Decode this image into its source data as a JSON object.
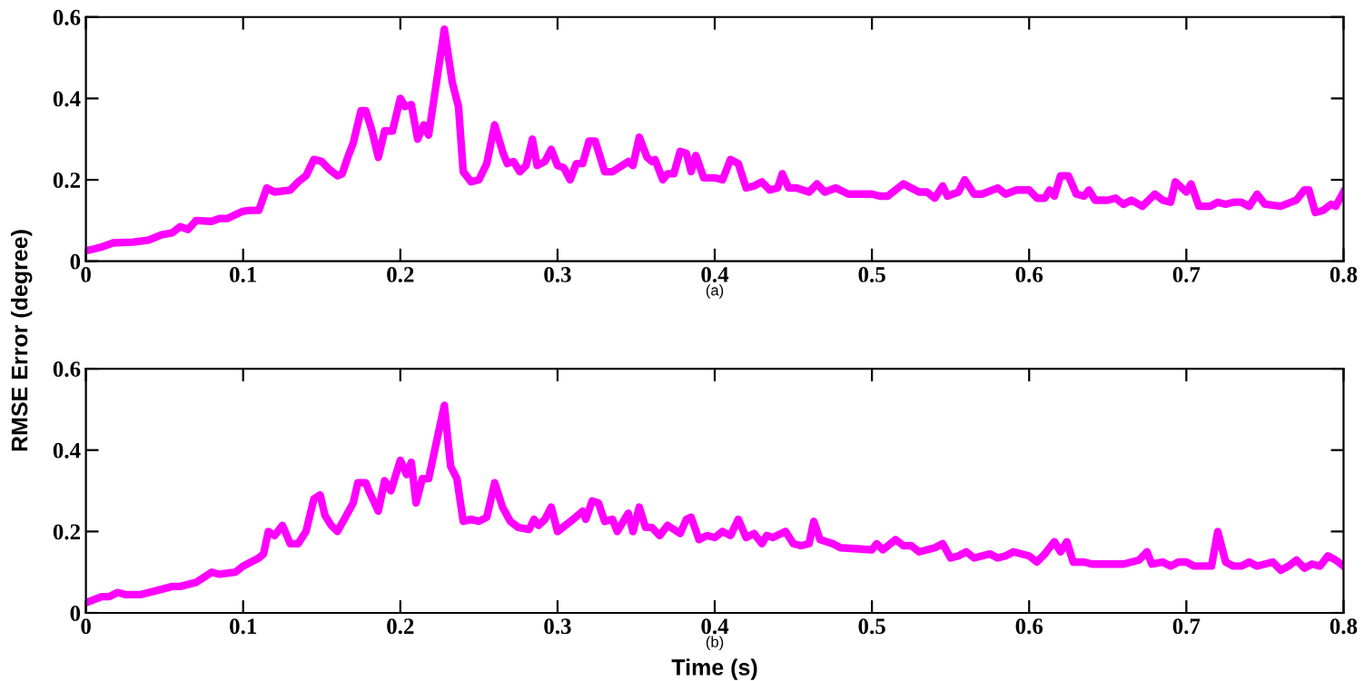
{
  "chart_data": [
    {
      "type": "line",
      "ylabel": "RMSE Error (degree)",
      "annotations": [
        "(a)"
      ],
      "xlim": [
        0,
        0.8
      ],
      "ylim": [
        0,
        0.6
      ],
      "xticks": [
        0,
        0.1,
        0.2,
        0.3,
        0.4,
        0.5,
        0.6,
        0.7,
        0.8
      ],
      "yticks": [
        0,
        0.2,
        0.4,
        0.6
      ],
      "grid": false,
      "legend": false,
      "marker": "none",
      "line_style": "solid",
      "series": [
        {
          "color": "#ff00ff",
          "x": [
            0,
            0.005,
            0.01,
            0.017,
            0.03,
            0.04,
            0.048,
            0.055,
            0.06,
            0.065,
            0.07,
            0.08,
            0.085,
            0.09,
            0.1,
            0.105,
            0.11,
            0.115,
            0.12,
            0.13,
            0.135,
            0.14,
            0.145,
            0.15,
            0.155,
            0.16,
            0.163,
            0.167,
            0.17,
            0.175,
            0.178,
            0.182,
            0.186,
            0.19,
            0.195,
            0.2,
            0.203,
            0.207,
            0.211,
            0.215,
            0.218,
            0.228,
            0.233,
            0.237,
            0.24,
            0.245,
            0.25,
            0.255,
            0.26,
            0.265,
            0.268,
            0.272,
            0.276,
            0.28,
            0.284,
            0.287,
            0.292,
            0.296,
            0.3,
            0.304,
            0.308,
            0.312,
            0.316,
            0.32,
            0.324,
            0.33,
            0.335,
            0.345,
            0.348,
            0.352,
            0.357,
            0.36,
            0.362,
            0.367,
            0.37,
            0.374,
            0.378,
            0.382,
            0.385,
            0.388,
            0.393,
            0.4,
            0.405,
            0.41,
            0.415,
            0.42,
            0.425,
            0.43,
            0.435,
            0.44,
            0.443,
            0.447,
            0.452,
            0.46,
            0.465,
            0.47,
            0.477,
            0.485,
            0.49,
            0.5,
            0.505,
            0.51,
            0.52,
            0.53,
            0.535,
            0.54,
            0.545,
            0.548,
            0.555,
            0.559,
            0.565,
            0.57,
            0.58,
            0.585,
            0.592,
            0.6,
            0.605,
            0.61,
            0.613,
            0.616,
            0.62,
            0.625,
            0.63,
            0.635,
            0.638,
            0.642,
            0.65,
            0.655,
            0.66,
            0.665,
            0.672,
            0.68,
            0.685,
            0.69,
            0.693,
            0.7,
            0.703,
            0.708,
            0.715,
            0.72,
            0.725,
            0.73,
            0.735,
            0.74,
            0.745,
            0.75,
            0.76,
            0.77,
            0.775,
            0.778,
            0.782,
            0.787,
            0.792,
            0.795,
            0.8
          ],
          "values": [
            0.026,
            0.03,
            0.035,
            0.045,
            0.047,
            0.052,
            0.065,
            0.07,
            0.085,
            0.078,
            0.1,
            0.098,
            0.105,
            0.105,
            0.123,
            0.125,
            0.125,
            0.18,
            0.17,
            0.175,
            0.195,
            0.21,
            0.25,
            0.245,
            0.225,
            0.21,
            0.215,
            0.26,
            0.29,
            0.37,
            0.37,
            0.32,
            0.255,
            0.32,
            0.32,
            0.4,
            0.38,
            0.385,
            0.3,
            0.335,
            0.31,
            0.57,
            0.44,
            0.38,
            0.22,
            0.195,
            0.2,
            0.24,
            0.335,
            0.27,
            0.24,
            0.245,
            0.22,
            0.235,
            0.3,
            0.235,
            0.245,
            0.275,
            0.235,
            0.23,
            0.2,
            0.24,
            0.24,
            0.295,
            0.295,
            0.22,
            0.22,
            0.245,
            0.235,
            0.305,
            0.255,
            0.245,
            0.25,
            0.2,
            0.215,
            0.215,
            0.27,
            0.265,
            0.22,
            0.26,
            0.205,
            0.205,
            0.2,
            0.25,
            0.24,
            0.18,
            0.185,
            0.195,
            0.175,
            0.18,
            0.215,
            0.18,
            0.18,
            0.17,
            0.19,
            0.17,
            0.18,
            0.165,
            0.165,
            0.165,
            0.16,
            0.16,
            0.19,
            0.17,
            0.17,
            0.155,
            0.185,
            0.16,
            0.17,
            0.2,
            0.165,
            0.165,
            0.18,
            0.165,
            0.175,
            0.175,
            0.155,
            0.155,
            0.175,
            0.16,
            0.21,
            0.21,
            0.165,
            0.16,
            0.175,
            0.15,
            0.15,
            0.155,
            0.14,
            0.15,
            0.135,
            0.165,
            0.15,
            0.145,
            0.195,
            0.17,
            0.19,
            0.135,
            0.135,
            0.145,
            0.14,
            0.145,
            0.145,
            0.135,
            0.165,
            0.14,
            0.135,
            0.15,
            0.175,
            0.175,
            0.12,
            0.125,
            0.14,
            0.135,
            0.17
          ]
        }
      ]
    },
    {
      "type": "line",
      "xlabel": "Time (s)",
      "annotations": [
        "(b)"
      ],
      "xlim": [
        0,
        0.8
      ],
      "ylim": [
        0,
        0.6
      ],
      "xticks": [
        0,
        0.1,
        0.2,
        0.3,
        0.4,
        0.5,
        0.6,
        0.7,
        0.8
      ],
      "yticks": [
        0,
        0.2,
        0.4,
        0.6
      ],
      "grid": false,
      "legend": false,
      "marker": "none",
      "line_style": "solid",
      "series": [
        {
          "color": "#ff00ff",
          "x": [
            0,
            0.01,
            0.015,
            0.02,
            0.025,
            0.035,
            0.045,
            0.05,
            0.055,
            0.06,
            0.07,
            0.08,
            0.085,
            0.095,
            0.1,
            0.11,
            0.113,
            0.116,
            0.12,
            0.125,
            0.13,
            0.135,
            0.14,
            0.145,
            0.149,
            0.152,
            0.156,
            0.16,
            0.165,
            0.17,
            0.173,
            0.178,
            0.18,
            0.186,
            0.19,
            0.194,
            0.2,
            0.204,
            0.207,
            0.21,
            0.214,
            0.218,
            0.228,
            0.232,
            0.236,
            0.24,
            0.245,
            0.25,
            0.255,
            0.26,
            0.265,
            0.27,
            0.275,
            0.282,
            0.285,
            0.288,
            0.292,
            0.296,
            0.3,
            0.31,
            0.316,
            0.318,
            0.322,
            0.326,
            0.33,
            0.335,
            0.338,
            0.345,
            0.348,
            0.352,
            0.356,
            0.36,
            0.365,
            0.37,
            0.378,
            0.382,
            0.385,
            0.39,
            0.395,
            0.4,
            0.405,
            0.41,
            0.415,
            0.42,
            0.425,
            0.43,
            0.433,
            0.437,
            0.445,
            0.45,
            0.455,
            0.46,
            0.463,
            0.467,
            0.475,
            0.48,
            0.5,
            0.503,
            0.507,
            0.515,
            0.52,
            0.525,
            0.53,
            0.535,
            0.54,
            0.545,
            0.55,
            0.555,
            0.56,
            0.565,
            0.575,
            0.58,
            0.585,
            0.59,
            0.595,
            0.6,
            0.605,
            0.61,
            0.616,
            0.62,
            0.624,
            0.628,
            0.635,
            0.64,
            0.66,
            0.665,
            0.67,
            0.675,
            0.678,
            0.685,
            0.69,
            0.695,
            0.7,
            0.705,
            0.71,
            0.716,
            0.72,
            0.725,
            0.73,
            0.735,
            0.74,
            0.745,
            0.755,
            0.76,
            0.765,
            0.77,
            0.775,
            0.78,
            0.785,
            0.79,
            0.795,
            0.8
          ],
          "values": [
            0.025,
            0.04,
            0.04,
            0.05,
            0.045,
            0.045,
            0.055,
            0.06,
            0.065,
            0.065,
            0.075,
            0.1,
            0.095,
            0.1,
            0.115,
            0.135,
            0.145,
            0.2,
            0.19,
            0.215,
            0.17,
            0.17,
            0.2,
            0.28,
            0.29,
            0.24,
            0.215,
            0.2,
            0.235,
            0.27,
            0.32,
            0.32,
            0.3,
            0.25,
            0.325,
            0.3,
            0.375,
            0.34,
            0.37,
            0.27,
            0.33,
            0.33,
            0.51,
            0.36,
            0.33,
            0.225,
            0.23,
            0.225,
            0.235,
            0.32,
            0.26,
            0.225,
            0.21,
            0.205,
            0.23,
            0.215,
            0.23,
            0.26,
            0.2,
            0.23,
            0.25,
            0.23,
            0.275,
            0.27,
            0.225,
            0.23,
            0.2,
            0.245,
            0.2,
            0.26,
            0.21,
            0.21,
            0.19,
            0.215,
            0.195,
            0.23,
            0.235,
            0.18,
            0.19,
            0.185,
            0.2,
            0.19,
            0.23,
            0.185,
            0.195,
            0.17,
            0.19,
            0.185,
            0.2,
            0.17,
            0.165,
            0.17,
            0.225,
            0.18,
            0.17,
            0.16,
            0.155,
            0.17,
            0.155,
            0.18,
            0.165,
            0.165,
            0.15,
            0.155,
            0.16,
            0.17,
            0.135,
            0.14,
            0.15,
            0.135,
            0.145,
            0.135,
            0.14,
            0.15,
            0.145,
            0.14,
            0.125,
            0.145,
            0.175,
            0.15,
            0.175,
            0.125,
            0.125,
            0.12,
            0.12,
            0.125,
            0.13,
            0.15,
            0.12,
            0.125,
            0.115,
            0.125,
            0.125,
            0.115,
            0.115,
            0.115,
            0.2,
            0.125,
            0.115,
            0.115,
            0.125,
            0.115,
            0.125,
            0.105,
            0.115,
            0.13,
            0.11,
            0.12,
            0.115,
            0.14,
            0.13,
            0.115
          ]
        }
      ]
    }
  ]
}
